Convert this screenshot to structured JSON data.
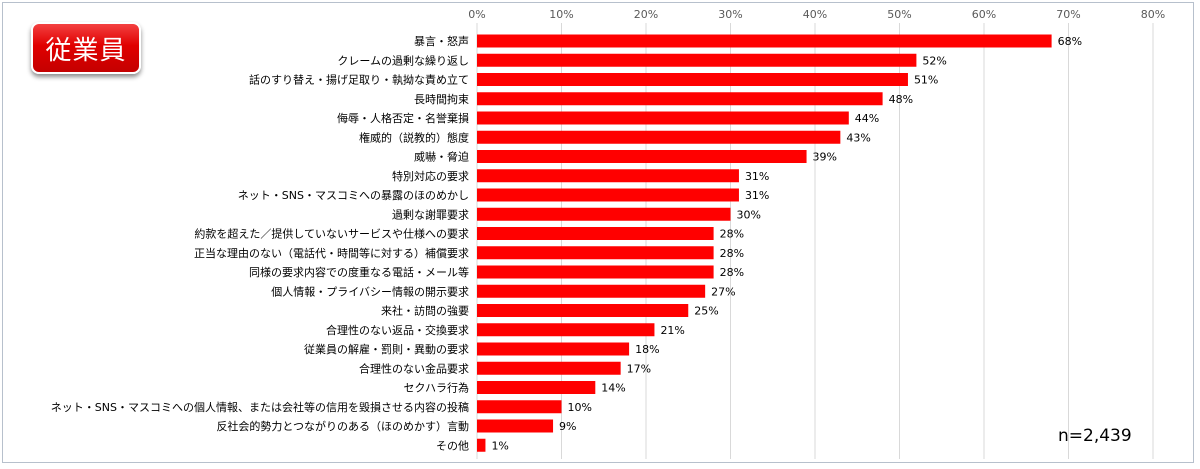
{
  "badge_label": "従業員",
  "sample_size": "n=2,439",
  "chart_data": {
    "type": "bar",
    "orientation": "horizontal",
    "xlim": [
      0,
      80
    ],
    "tick_values": [
      0,
      10,
      20,
      30,
      40,
      50,
      60,
      70,
      80
    ],
    "tick_labels": [
      "0%",
      "10%",
      "20%",
      "30%",
      "40%",
      "50%",
      "60%",
      "70%",
      "80%"
    ],
    "grid": true,
    "bar_color": "#ff0000",
    "categories": [
      "暴言・怒声",
      "クレームの過剰な繰り返し",
      "話のすり替え・揚げ足取り・執拗な責め立て",
      "長時間拘束",
      "侮辱・人格否定・名誉棄損",
      "権威的（説教的）態度",
      "威嚇・脅迫",
      "特別対応の要求",
      "ネット・SNS・マスコミへの暴露のほのめかし",
      "過剰な謝罪要求",
      "約款を超えた／提供していないサービスや仕様への要求",
      "正当な理由のない（電話代・時間等に対する）補償要求",
      "同様の要求内容での度重なる電話・メール等",
      "個人情報・プライバシー情報の開示要求",
      "来社・訪問の強要",
      "合理性のない返品・交換要求",
      "従業員の解雇・罰則・異動の要求",
      "合理性のない金品要求",
      "セクハラ行為",
      "ネット・SNS・マスコミへの個人情報、または会社等の信用を毀損させる内容の投稿",
      "反社会的勢力とつながりのある（ほのめかす）言動",
      "その他"
    ],
    "values": [
      68,
      52,
      51,
      48,
      44,
      43,
      39,
      31,
      31,
      30,
      28,
      28,
      28,
      27,
      25,
      21,
      18,
      17,
      14,
      10,
      9,
      1
    ],
    "value_labels": [
      "68%",
      "52%",
      "51%",
      "48%",
      "44%",
      "43%",
      "39%",
      "31%",
      "31%",
      "30%",
      "28%",
      "28%",
      "28%",
      "27%",
      "25%",
      "21%",
      "18%",
      "17%",
      "14%",
      "10%",
      "9%",
      "1%"
    ]
  }
}
